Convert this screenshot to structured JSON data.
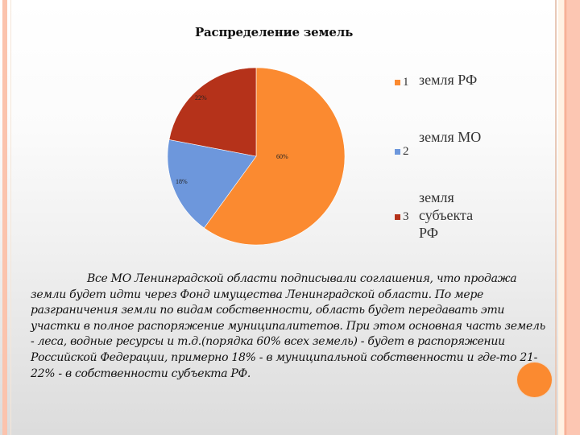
{
  "slide": {
    "chart_title": "Распределение земель",
    "body_text": "Все МО Ленинградской области подписывали соглашения, что продажа земли будет идти через Фонд имущества Ленинградской области. По мере разграничения земли по видам собственности, область будет передавать эти участки в полное распоряжение муниципалитетов. При этом основная часть земель - леса, водные ресурсы и т.д.(порядка 60% всех земель) - будет в распоряжении Российской Федерации, примерно 18% - в муниципальной собственности и где-то 21-22% - в собственности субъекта РФ.",
    "decoration": {
      "dot_color": "#fb8a30",
      "frame_color": "#fbc3ad"
    }
  },
  "legend": [
    {
      "num": "1",
      "label": "земля РФ",
      "color": "#fb8a30"
    },
    {
      "num": "2",
      "label": "земля МО",
      "color": "#6d97dc"
    },
    {
      "num": "3",
      "label": "земля субъекта РФ",
      "color": "#b5321a"
    }
  ],
  "chart_data": {
    "type": "pie",
    "title": "Распределение земель",
    "categories": [
      "1 земля РФ",
      "2 земля МО",
      "3 земля субъекта РФ"
    ],
    "values": [
      60,
      18,
      22
    ],
    "labels": [
      "60%",
      "18%",
      "22%"
    ],
    "colors": [
      "#fb8a30",
      "#6d97dc",
      "#b5321a"
    ],
    "legend_position": "right",
    "start_angle": "12 o'clock, clockwise"
  }
}
